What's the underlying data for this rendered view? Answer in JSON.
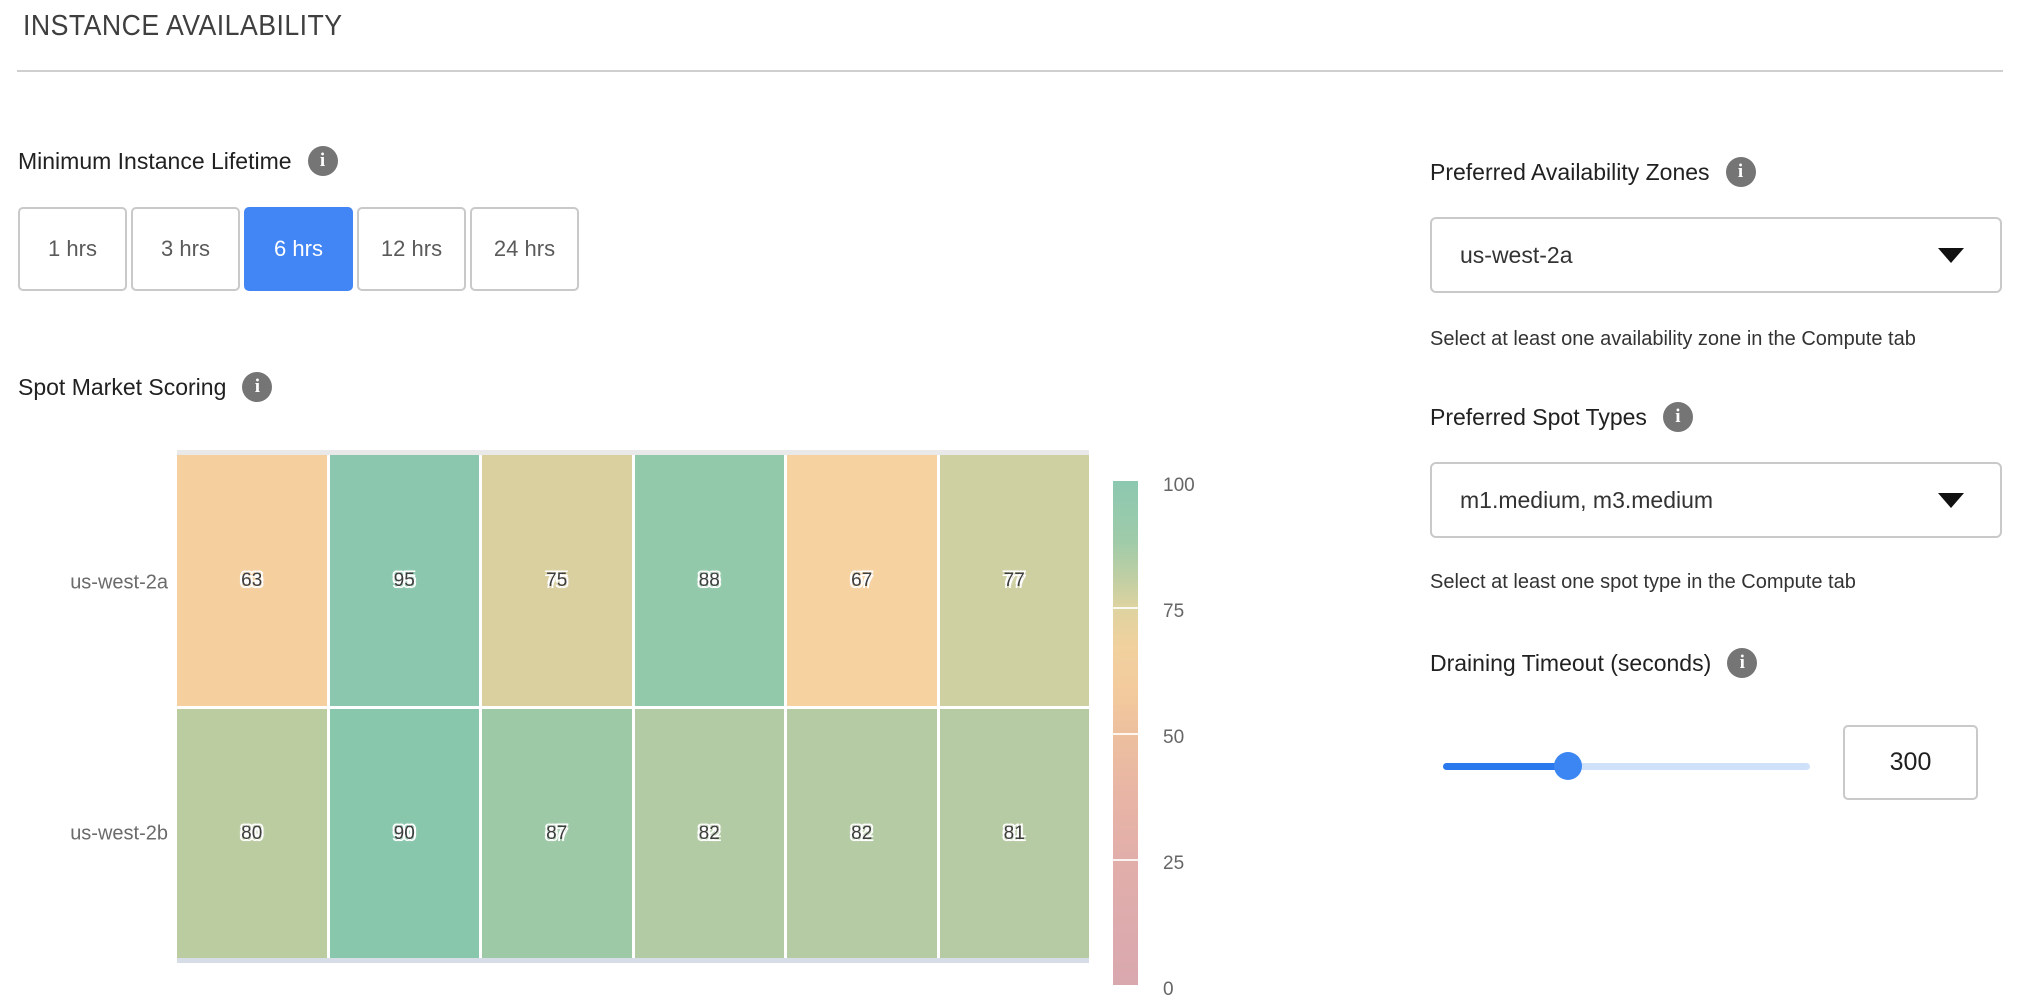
{
  "page_title": "INSTANCE AVAILABILITY",
  "icons": {
    "info": "i"
  },
  "lifetime": {
    "label": "Minimum Instance Lifetime",
    "options": [
      {
        "label": "1 hrs",
        "selected": false
      },
      {
        "label": "3 hrs",
        "selected": false
      },
      {
        "label": "6 hrs",
        "selected": true
      },
      {
        "label": "12 hrs",
        "selected": false
      },
      {
        "label": "24 hrs",
        "selected": false
      }
    ]
  },
  "scoring_label": "Spot Market Scoring",
  "chart_data": {
    "type": "heatmap",
    "title": "Spot Market Scoring",
    "rows": [
      "us-west-2a",
      "us-west-2b"
    ],
    "columns": 6,
    "values": [
      [
        63,
        95,
        75,
        88,
        67,
        77
      ],
      [
        80,
        90,
        87,
        82,
        82,
        81
      ]
    ],
    "cell_colors": [
      [
        "#f5cf9e",
        "#8bc7ae",
        "#d9cf9f",
        "#93c9ab",
        "#f7d2a1",
        "#ced0a2"
      ],
      [
        "#bccca1",
        "#89c7ad",
        "#9ec9a7",
        "#b3cba4",
        "#b4cba4",
        "#b6cba3"
      ]
    ],
    "colorbar": {
      "range": [
        0,
        100
      ],
      "ticks": [
        100,
        75,
        50,
        25,
        0
      ],
      "gradient": [
        {
          "pos": 0,
          "color": "#8cc8b0"
        },
        {
          "pos": 12,
          "color": "#9fcba9"
        },
        {
          "pos": 20,
          "color": "#c3cfa3"
        },
        {
          "pos": 25,
          "color": "#ddd3a0"
        },
        {
          "pos": 33,
          "color": "#f1d19e"
        },
        {
          "pos": 42,
          "color": "#f3ca9d"
        },
        {
          "pos": 50,
          "color": "#edc09e"
        },
        {
          "pos": 62,
          "color": "#e8b5a5"
        },
        {
          "pos": 75,
          "color": "#e2aeaa"
        },
        {
          "pos": 100,
          "color": "#d9a8af"
        }
      ]
    }
  },
  "right_panel": {
    "az": {
      "label": "Preferred Availability Zones",
      "value": "us-west-2a",
      "helper": "Select at least one availability zone in the Compute tab"
    },
    "spot": {
      "label": "Preferred Spot Types",
      "value": "m1.medium, m3.medium",
      "helper": "Select at least one spot type in the Compute tab"
    },
    "draining": {
      "label": "Draining Timeout (seconds)",
      "value": "300",
      "percent": 34
    }
  },
  "colors": {
    "accent_blue": "#4285f4",
    "slider_fill": "#2a78ee",
    "slider_rest": "#cfe1f9"
  }
}
